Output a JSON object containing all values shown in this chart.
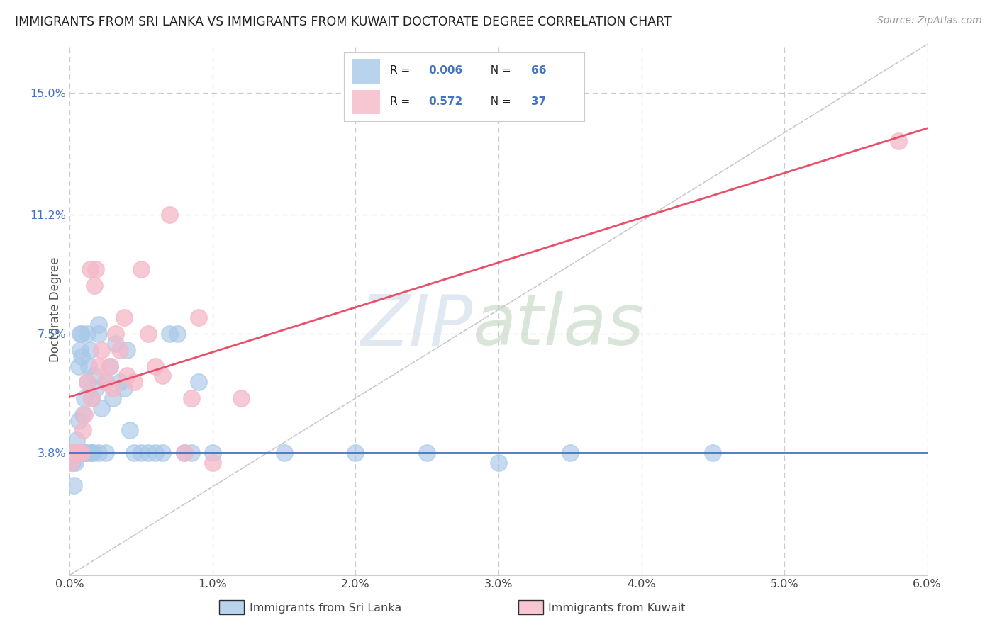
{
  "title": "IMMIGRANTS FROM SRI LANKA VS IMMIGRANTS FROM KUWAIT DOCTORATE DEGREE CORRELATION CHART",
  "source": "Source: ZipAtlas.com",
  "xlabel_bottom1": "Immigrants from Sri Lanka",
  "xlabel_bottom2": "Immigrants from Kuwait",
  "ylabel": "Doctorate Degree",
  "xlim": [
    0.0,
    6.0
  ],
  "ylim": [
    0.0,
    16.5
  ],
  "xticks": [
    0.0,
    1.0,
    2.0,
    3.0,
    4.0,
    5.0,
    6.0
  ],
  "xtick_labels": [
    "0.0%",
    "1.0%",
    "2.0%",
    "3.0%",
    "4.0%",
    "5.0%",
    "6.0%"
  ],
  "yticks": [
    3.8,
    7.5,
    11.2,
    15.0
  ],
  "ytick_labels": [
    "3.8%",
    "7.5%",
    "11.2%",
    "15.0%"
  ],
  "gridline_color": "#cccccc",
  "background_color": "#ffffff",
  "sri_lanka_color": "#a8c8e8",
  "kuwait_color": "#f5b8c8",
  "sri_lanka_line_color": "#4472c4",
  "kuwait_line_color": "#e8506a",
  "diagonal_line_color": "#c8c8c8",
  "legend_R1": "0.006",
  "legend_N1": "66",
  "legend_R2": "0.572",
  "legend_N2": "37",
  "sri_lanka_x": [
    0.01,
    0.02,
    0.02,
    0.03,
    0.03,
    0.03,
    0.04,
    0.04,
    0.04,
    0.05,
    0.05,
    0.06,
    0.06,
    0.07,
    0.07,
    0.08,
    0.08,
    0.09,
    0.1,
    0.1,
    0.1,
    0.12,
    0.12,
    0.13,
    0.14,
    0.15,
    0.15,
    0.16,
    0.17,
    0.18,
    0.2,
    0.2,
    0.22,
    0.25,
    0.28,
    0.3,
    0.32,
    0.35,
    0.38,
    0.4,
    0.42,
    0.45,
    0.5,
    0.55,
    0.6,
    0.65,
    0.7,
    0.75,
    0.8,
    0.85,
    0.9,
    1.0,
    1.5,
    2.0,
    2.5,
    3.0,
    3.5,
    4.5,
    0.03,
    0.05,
    0.07,
    0.09,
    0.12,
    0.15,
    0.2,
    0.25
  ],
  "sri_lanka_y": [
    3.8,
    3.5,
    3.8,
    3.8,
    3.8,
    2.8,
    3.8,
    3.8,
    3.5,
    3.8,
    4.2,
    4.8,
    6.5,
    7.0,
    7.5,
    6.8,
    7.5,
    5.0,
    5.5,
    3.8,
    3.8,
    6.0,
    7.5,
    6.5,
    7.0,
    5.5,
    3.8,
    3.8,
    6.2,
    5.8,
    7.5,
    7.8,
    5.2,
    6.0,
    6.5,
    5.5,
    7.2,
    6.0,
    5.8,
    7.0,
    4.5,
    3.8,
    3.8,
    3.8,
    3.8,
    3.8,
    7.5,
    7.5,
    3.8,
    3.8,
    6.0,
    3.8,
    3.8,
    3.8,
    3.8,
    3.5,
    3.8,
    3.8,
    3.8,
    3.8,
    3.8,
    3.8,
    3.8,
    3.8,
    3.8,
    3.8
  ],
  "kuwait_x": [
    0.01,
    0.02,
    0.03,
    0.04,
    0.05,
    0.05,
    0.06,
    0.07,
    0.08,
    0.09,
    0.1,
    0.12,
    0.14,
    0.15,
    0.17,
    0.18,
    0.2,
    0.22,
    0.25,
    0.28,
    0.3,
    0.32,
    0.35,
    0.38,
    0.4,
    0.45,
    0.5,
    0.55,
    0.6,
    0.65,
    0.7,
    0.8,
    0.85,
    0.9,
    1.0,
    1.2,
    5.8
  ],
  "kuwait_y": [
    3.5,
    3.8,
    3.8,
    3.8,
    3.8,
    3.8,
    3.8,
    3.8,
    3.8,
    4.5,
    5.0,
    6.0,
    9.5,
    5.5,
    9.0,
    9.5,
    6.5,
    7.0,
    6.0,
    6.5,
    5.8,
    7.5,
    7.0,
    8.0,
    6.2,
    6.0,
    9.5,
    7.5,
    6.5,
    6.2,
    11.2,
    3.8,
    5.5,
    8.0,
    3.5,
    5.5,
    13.5
  ]
}
